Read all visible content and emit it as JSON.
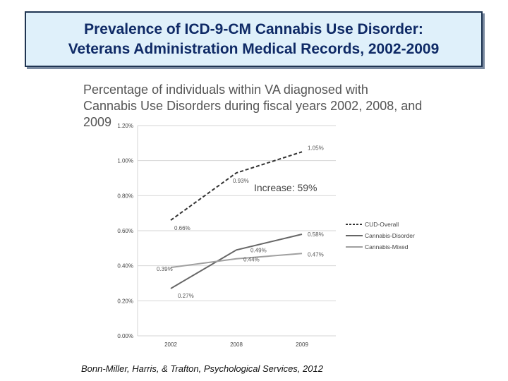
{
  "header": {
    "line1": "Prevalence of ICD-9-CM Cannabis Use Disorder:",
    "line2": "Veterans Administration Medical Records, 2002-2009"
  },
  "footer": {
    "citation": "Bonn-Miller, Harris, & Trafton, Psychological Services, 2012"
  },
  "chart_data": {
    "type": "line",
    "title_line1": "Percentage of individuals within VA diagnosed with",
    "title_line2": "Cannabis Use Disorders during fiscal years 2002, 2008, and 2009",
    "categories": [
      "2002",
      "2008",
      "2009"
    ],
    "y_ticks": [
      "0.00%",
      "0.20%",
      "0.40%",
      "0.60%",
      "0.80%",
      "1.00%",
      "1.20%"
    ],
    "ylim": [
      0,
      1.2
    ],
    "grid": true,
    "legend_position": "right",
    "annotation": "Increase: 59%",
    "series": [
      {
        "name": "CUD-Overall",
        "values": [
          0.66,
          0.93,
          1.05
        ],
        "labels": [
          "0.66%",
          "0.93%",
          "1.05%"
        ],
        "color": "#333333",
        "dash": "5,3",
        "width": 2
      },
      {
        "name": "Cannabis-Disorder",
        "values": [
          0.27,
          0.49,
          0.58
        ],
        "labels": [
          "0.27%",
          "0.49%",
          "0.58%"
        ],
        "color": "#666666",
        "dash": "",
        "width": 2
      },
      {
        "name": "Cannabis-Mixed",
        "values": [
          0.39,
          0.44,
          0.47
        ],
        "labels": [
          "0.39%",
          "0.44%",
          "0.47%"
        ],
        "color": "#a0a0a0",
        "dash": "",
        "width": 2
      }
    ]
  }
}
